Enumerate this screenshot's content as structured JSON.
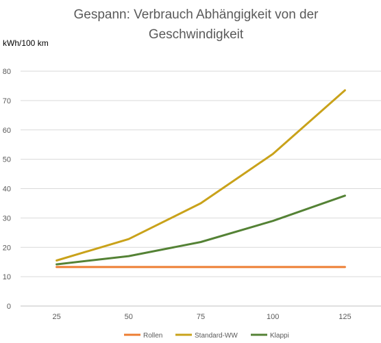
{
  "chart_data": {
    "type": "line",
    "title_lines": [
      "Gespann: Verbrauch Abhängigkeit von der",
      "Geschwindigkeit"
    ],
    "ylabel": "kWh/100 km",
    "xlabel": "",
    "categories": [
      "25",
      "50",
      "75",
      "100",
      "125"
    ],
    "ylim": [
      0,
      80
    ],
    "yticks": [
      "0",
      "10",
      "20",
      "30",
      "40",
      "50",
      "60",
      "70",
      "80"
    ],
    "grid": true,
    "legend_position": "bottom",
    "series": [
      {
        "name": "Rollen",
        "color": "#ED7D31",
        "values": [
          13.3,
          13.3,
          13.3,
          13.3,
          13.3
        ]
      },
      {
        "name": "Standard-WW",
        "color": "#C9A21A",
        "values": [
          15.5,
          22.8,
          35.0,
          51.8,
          73.5
        ]
      },
      {
        "name": "Klappi",
        "color": "#548235",
        "values": [
          14.2,
          17.0,
          21.8,
          29.0,
          37.6
        ]
      }
    ]
  }
}
